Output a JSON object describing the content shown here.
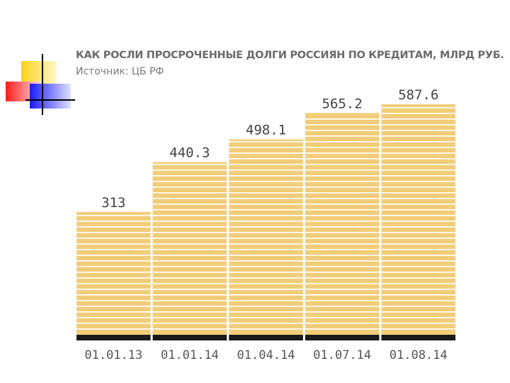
{
  "chart_data": {
    "type": "bar",
    "title": "КАК РОСЛИ ПРОСРОЧЕННЫЕ ДОЛГИ РОССИЯН ПО КРЕДИТАМ, МЛРД РУБ.",
    "subtitle": "Источник: ЦБ РФ",
    "categories": [
      "01.01.13",
      "01.01.14",
      "01.04.14",
      "01.07.14",
      "01.08.14"
    ],
    "values": [
      313,
      440.3,
      498.1,
      565.2,
      587.6
    ],
    "value_labels": [
      "313",
      "440.3",
      "498.1",
      "565.2",
      "587.6"
    ],
    "xlabel": "",
    "ylabel": "",
    "grid": false,
    "colors": {
      "bar": "#f2cd79",
      "stripe": "#ffffff",
      "base": "#1a1a1a",
      "text": "#444444"
    }
  }
}
